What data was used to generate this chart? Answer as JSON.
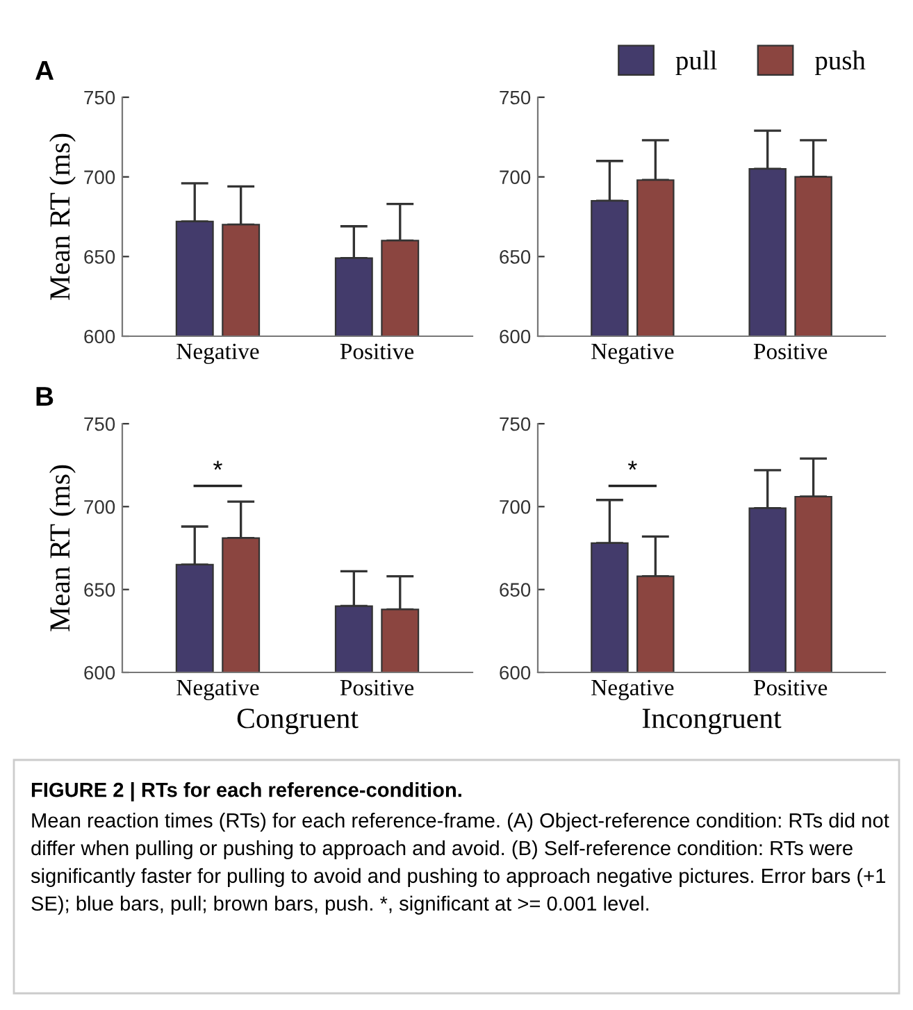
{
  "chart_data": [
    {
      "type": "bar",
      "title": "A",
      "ylabel": "Mean RT (ms)",
      "categories": [
        "Negative",
        "Positive"
      ],
      "ylim": [
        600,
        750
      ],
      "yticks": [
        600,
        650,
        700,
        750
      ],
      "grid": false,
      "legend": "top right",
      "series": [
        {
          "name": "pull",
          "color": "#433b6b",
          "values": [
            672,
            649
          ],
          "errors": [
            [
              672,
              696
            ],
            [
              649,
              669
            ]
          ]
        },
        {
          "name": "push",
          "color": "#8b4540",
          "values": [
            670,
            660
          ],
          "errors": [
            [
              670,
              694
            ],
            [
              660,
              683
            ]
          ]
        }
      ]
    },
    {
      "type": "bar",
      "categories": [
        "Negative",
        "Positive"
      ],
      "ylim": [
        600,
        750
      ],
      "yticks": [
        600,
        650,
        700,
        750
      ],
      "grid": false,
      "series": [
        {
          "color": "#433b6b",
          "values": [
            685,
            705
          ],
          "errors": [
            [
              685,
              710
            ],
            [
              705,
              729
            ]
          ]
        },
        {
          "color": "#8b4540",
          "values": [
            698,
            700
          ],
          "errors": [
            [
              698,
              723
            ],
            [
              700,
              723
            ]
          ]
        }
      ]
    },
    {
      "type": "bar",
      "title": "B",
      "ylabel": "Mean RT (ms)",
      "xlabel": "Congruent",
      "categories": [
        "Negative",
        "Positive"
      ],
      "ylim": [
        600,
        750
      ],
      "yticks": [
        600,
        650,
        700,
        750
      ],
      "grid": false,
      "annotations": [
        "*"
      ],
      "series": [
        {
          "color": "#433b6b",
          "values": [
            665,
            640
          ],
          "errors": [
            [
              665,
              688
            ],
            [
              640,
              661
            ]
          ]
        },
        {
          "color": "#8b4540",
          "values": [
            681,
            638
          ],
          "errors": [
            [
              681,
              703
            ],
            [
              638,
              658
            ]
          ]
        }
      ]
    },
    {
      "type": "bar",
      "xlabel": "Incongruent",
      "categories": [
        "Negative",
        "Positive"
      ],
      "ylim": [
        600,
        750
      ],
      "yticks": [
        600,
        650,
        700,
        750
      ],
      "grid": false,
      "annotations": [
        "*",
        "FIGURE 2 | RTs for each reference-condition.",
        "Mean reaction times (RTs) for each reference-frame. (A) Object-reference condition: RTs did not differ when pulling or pushing to approach and avoid. (B) Self-reference condition: RTs were significantly faster for pulling to avoid and pushing to approach negative pictures. Error bars (+1 SE); blue bars, pull; brown bars, push. *, significant at >= 0.001 level."
      ],
      "series": [
        {
          "color": "#433b6b",
          "values": [
            678,
            699
          ],
          "errors": [
            [
              678,
              704
            ],
            [
              699,
              722
            ]
          ]
        },
        {
          "color": "#8b4540",
          "values": [
            658,
            706
          ],
          "errors": [
            [
              658,
              682
            ],
            [
              706,
              729
            ]
          ]
        }
      ]
    }
  ]
}
